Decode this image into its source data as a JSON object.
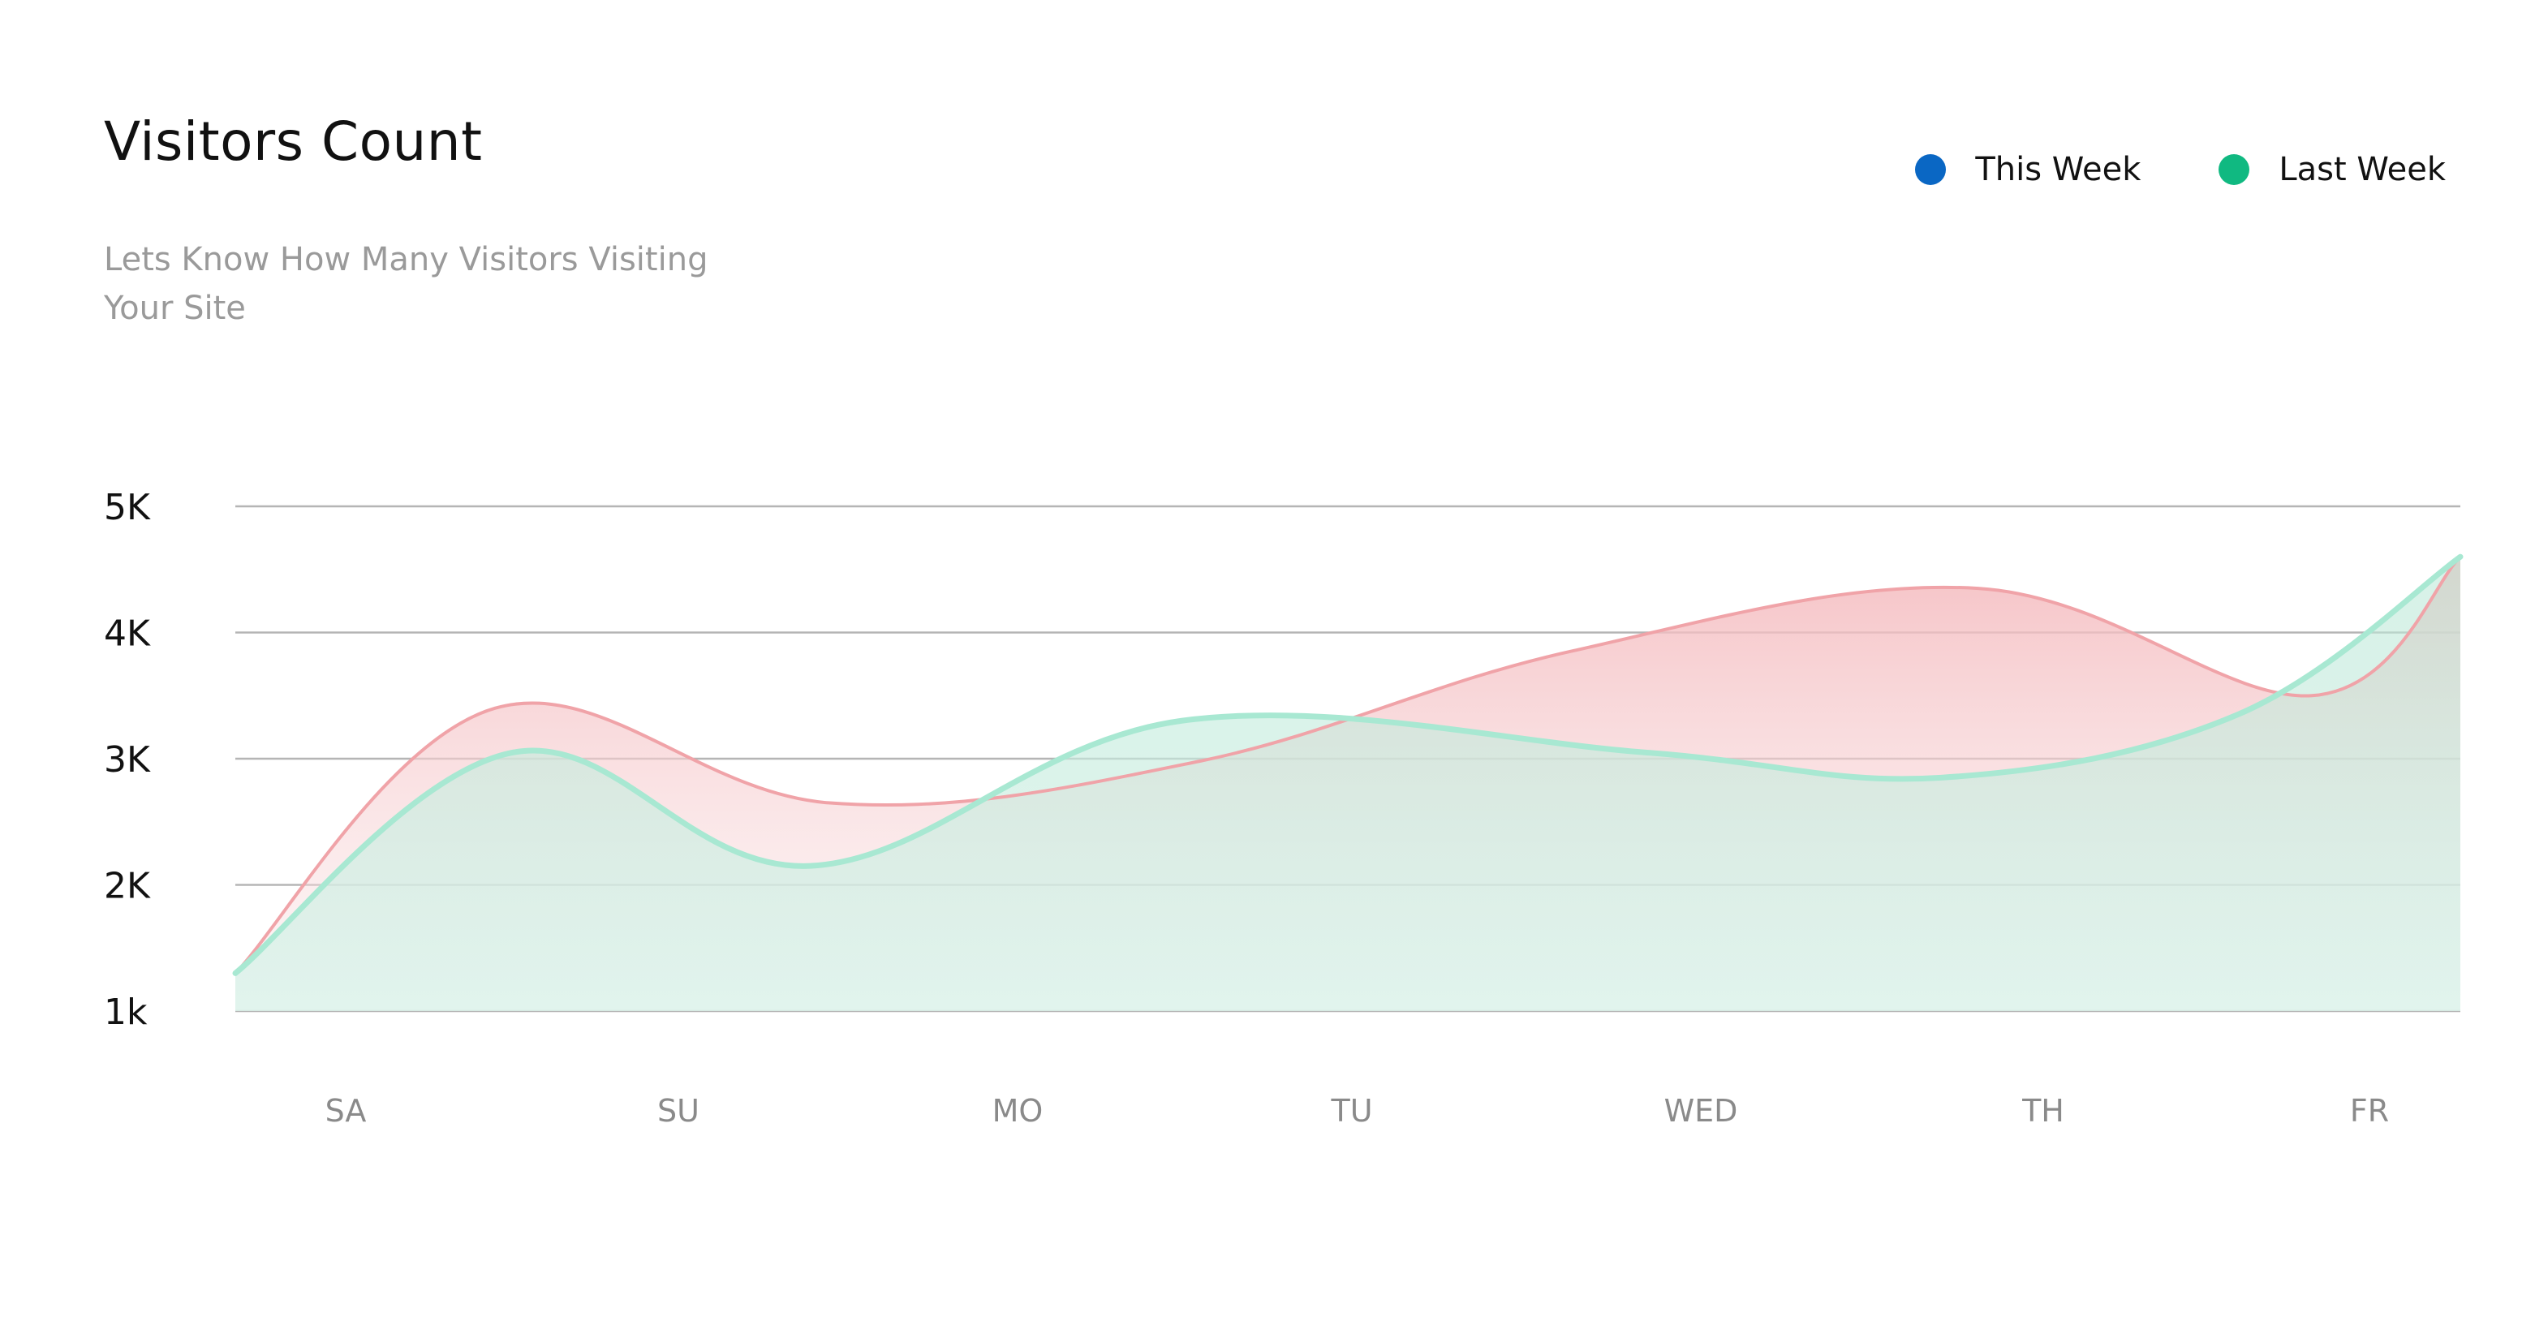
{
  "title": "Visitors Count",
  "subtitle": "Lets Know How Many Visitors Visiting Your Site",
  "legend": [
    {
      "label": "This Week",
      "color": "#0a67c4"
    },
    {
      "label": "Last Week",
      "color": "#10b981"
    }
  ],
  "chart_data": {
    "type": "area",
    "title": "Visitors Count",
    "subtitle": "Lets Know How Many Visitors Visiting Your Site",
    "categories": [
      "SA",
      "SU",
      "MO",
      "TU",
      "WED",
      "TH",
      "FR"
    ],
    "y_ticks": [
      "1k",
      "2K",
      "3K",
      "4K",
      "5K"
    ],
    "ylim": [
      1000,
      5000
    ],
    "grid": true,
    "legend_position": "top-right",
    "series": [
      {
        "name": "This Week",
        "line_color": "#f0a3a8",
        "fill_color": "#f4b7bb",
        "x": [
          0,
          0.7,
          1.6,
          2.6,
          3.6,
          4.7,
          5.6,
          6.0
        ],
        "values": [
          1300,
          3400,
          2650,
          2980,
          3850,
          4350,
          3500,
          4600
        ]
      },
      {
        "name": "Last Week",
        "line_color": "#a8e8d2",
        "fill_color": "#b9e8d6",
        "x": [
          0,
          0.75,
          1.55,
          2.55,
          3.8,
          4.6,
          5.4,
          6.0
        ],
        "values": [
          1300,
          3050,
          2150,
          3300,
          3050,
          2850,
          3350,
          4600
        ]
      }
    ]
  }
}
